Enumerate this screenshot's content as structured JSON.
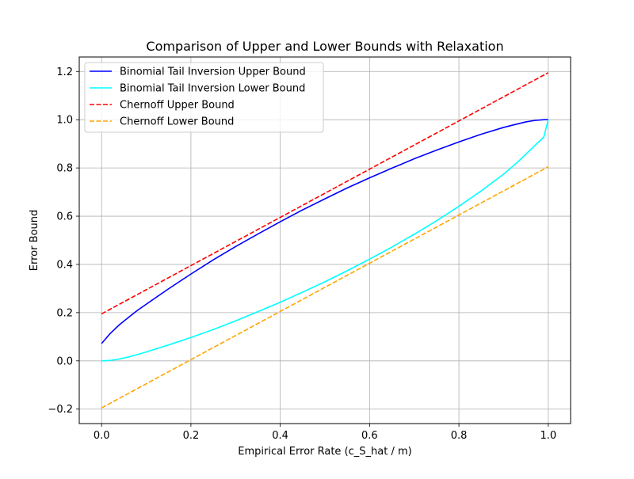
{
  "chart_data": {
    "type": "line",
    "title": "Comparison of Upper and Lower Bounds with Relaxation",
    "xlabel": "Empirical Error Rate (c_S_hat / m)",
    "ylabel": "Error Bound",
    "xlim": [
      -0.05,
      1.05
    ],
    "ylim": [
      -0.26,
      1.26
    ],
    "xticks": [
      0.0,
      0.2,
      0.4,
      0.6,
      0.8,
      1.0
    ],
    "xtick_labels": [
      "0.0",
      "0.2",
      "0.4",
      "0.6",
      "0.8",
      "1.0"
    ],
    "yticks": [
      -0.2,
      0.0,
      0.2,
      0.4,
      0.6,
      0.8,
      1.0,
      1.2
    ],
    "ytick_labels": [
      "−0.2",
      "0.0",
      "0.2",
      "0.4",
      "0.6",
      "0.8",
      "1.0",
      "1.2"
    ],
    "grid": true,
    "legend_position": "top-left",
    "series": [
      {
        "name": "Binomial Tail Inversion Upper Bound",
        "color": "#0000ff",
        "style": "solid",
        "x": [
          0.0,
          0.02,
          0.04,
          0.06,
          0.08,
          0.1,
          0.15,
          0.2,
          0.25,
          0.3,
          0.35,
          0.4,
          0.45,
          0.5,
          0.55,
          0.6,
          0.65,
          0.7,
          0.75,
          0.8,
          0.85,
          0.9,
          0.93,
          0.95,
          0.97,
          0.99,
          1.0
        ],
        "y": [
          0.072,
          0.115,
          0.15,
          0.18,
          0.209,
          0.235,
          0.299,
          0.36,
          0.419,
          0.474,
          0.526,
          0.577,
          0.626,
          0.672,
          0.717,
          0.759,
          0.799,
          0.838,
          0.874,
          0.908,
          0.94,
          0.968,
          0.982,
          0.991,
          0.997,
          1.0,
          1.0
        ]
      },
      {
        "name": "Binomial Tail Inversion Lower Bound",
        "color": "#00ffff",
        "style": "solid",
        "x": [
          0.0,
          0.02,
          0.04,
          0.06,
          0.08,
          0.1,
          0.15,
          0.2,
          0.25,
          0.3,
          0.35,
          0.4,
          0.45,
          0.5,
          0.55,
          0.6,
          0.65,
          0.7,
          0.75,
          0.8,
          0.85,
          0.9,
          0.93,
          0.95,
          0.97,
          0.99,
          1.0
        ],
        "y": [
          0.0,
          0.002,
          0.008,
          0.016,
          0.026,
          0.037,
          0.066,
          0.097,
          0.13,
          0.166,
          0.204,
          0.243,
          0.285,
          0.328,
          0.374,
          0.422,
          0.472,
          0.525,
          0.581,
          0.641,
          0.705,
          0.774,
          0.822,
          0.857,
          0.893,
          0.928,
          1.0
        ]
      },
      {
        "name": "Chernoff Upper Bound",
        "color": "#ff0000",
        "style": "dashed",
        "x": [
          0.0,
          1.0
        ],
        "y": [
          0.195,
          1.195
        ]
      },
      {
        "name": "Chernoff Lower Bound",
        "color": "#ffa500",
        "style": "dashed",
        "x": [
          0.0,
          1.0
        ],
        "y": [
          -0.195,
          0.805
        ]
      }
    ]
  }
}
